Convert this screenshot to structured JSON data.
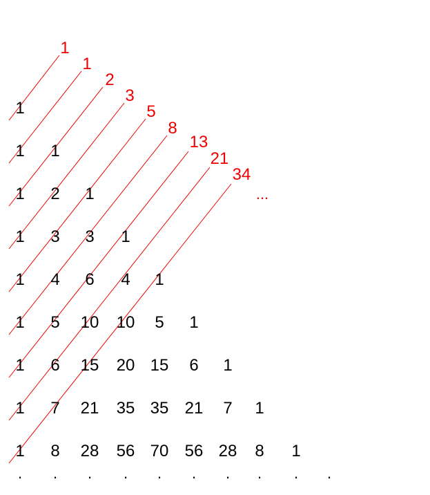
{
  "triangle_rows": [
    [
      "1"
    ],
    [
      "1",
      "1"
    ],
    [
      "1",
      "2",
      "1"
    ],
    [
      "1",
      "3",
      "3",
      "1"
    ],
    [
      "1",
      "4",
      "6",
      "4",
      "1"
    ],
    [
      "1",
      "5",
      "10",
      "10",
      "5",
      "1"
    ],
    [
      "1",
      "6",
      "15",
      "20",
      "15",
      "6",
      "1"
    ],
    [
      "1",
      "7",
      "21",
      "35",
      "35",
      "21",
      "7",
      "1"
    ],
    [
      "1",
      "8",
      "28",
      "56",
      "70",
      "56",
      "28",
      "8",
      "1"
    ]
  ],
  "continuation_dots": [
    ".",
    ".",
    ".",
    ".",
    ".",
    ".",
    ".",
    ".",
    ".",
    "."
  ],
  "fibonacci_sums": [
    "1",
    "1",
    "2",
    "3",
    "5",
    "8",
    "13",
    "21",
    "34"
  ],
  "fibonacci_continuation": "...",
  "colors": {
    "numbers": "#000000",
    "diagonals": "#ee0000"
  }
}
